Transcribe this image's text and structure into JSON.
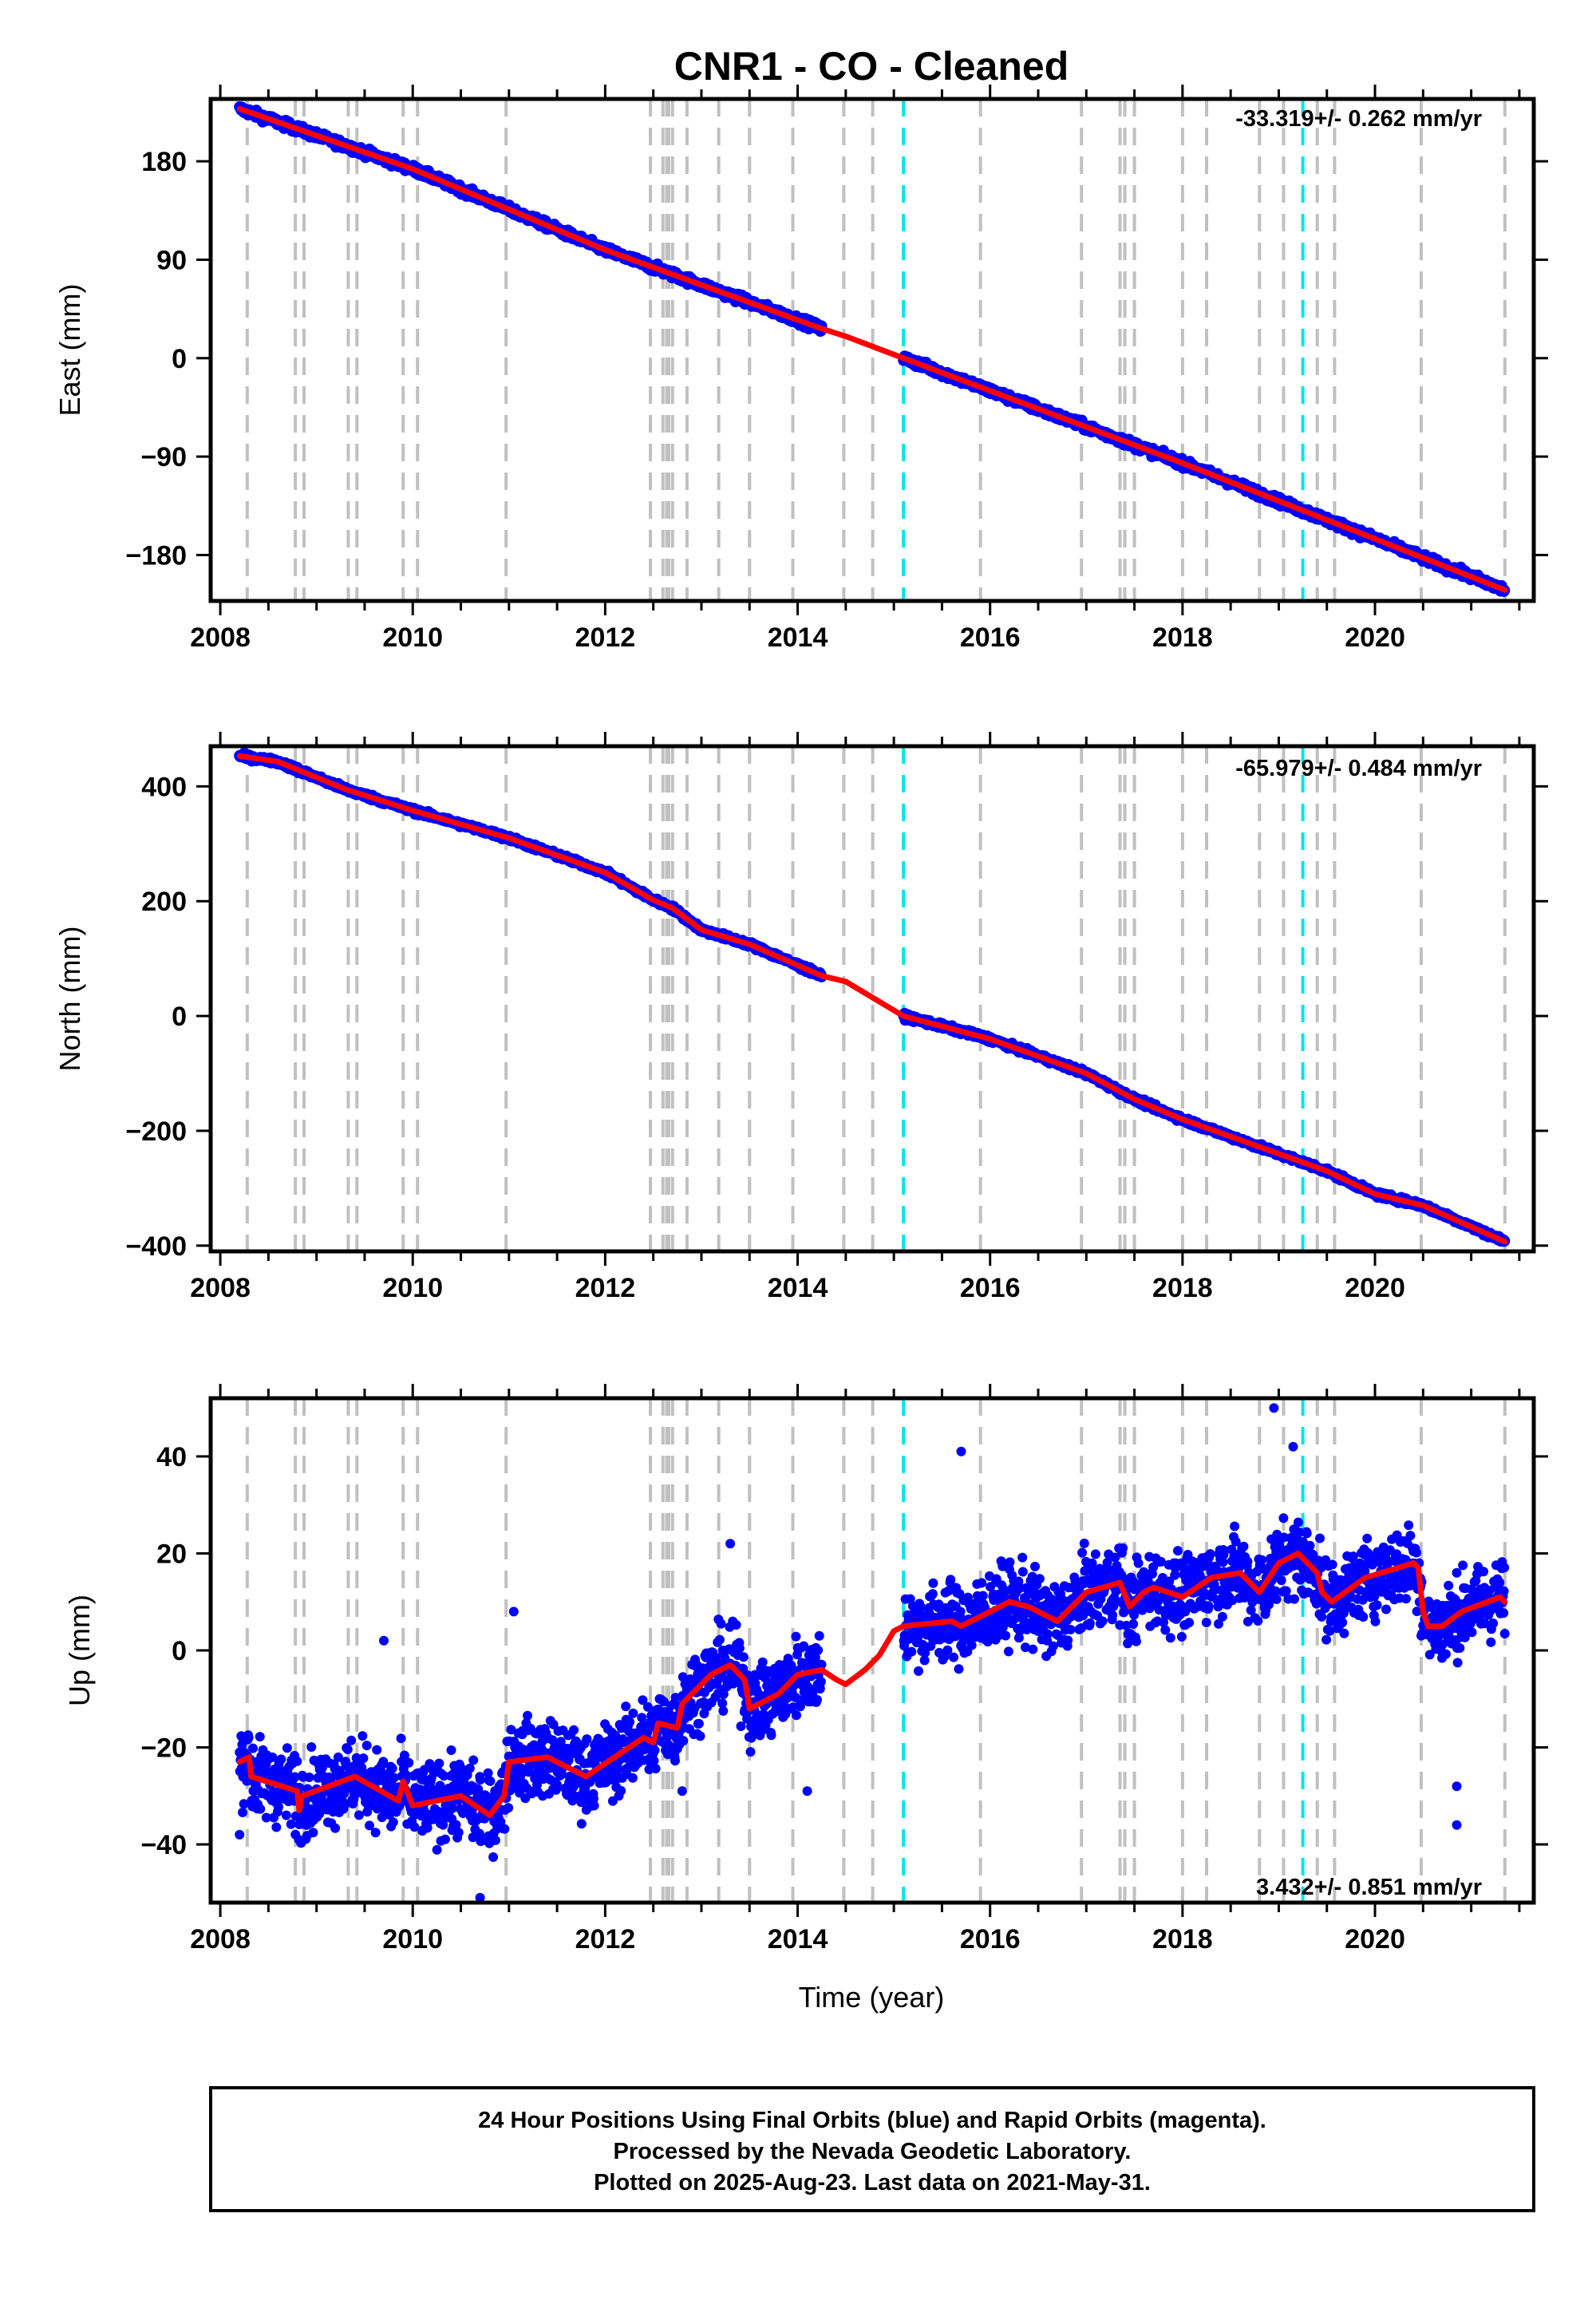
{
  "title": "CNR1  - CO - Cleaned",
  "xlabel": "Time (year)",
  "footer": [
    "24 Hour Positions Using Final Orbits (blue) and Rapid Orbits (magenta).",
    "Processed by the Nevada Geodetic Laboratory.",
    "Plotted on 2025-Aug-23. Last data on 2021-May-31."
  ],
  "colors": {
    "data": "#0000ff",
    "model": "#ff0000",
    "gray_lines": "#c0c0c0",
    "cyan_lines": "#00e5ee"
  },
  "chart_data": [
    {
      "type": "scatter",
      "title": "CNR1  - CO - Cleaned",
      "ylabel": "East (mm)",
      "xlim": [
        2007.9,
        2021.65
      ],
      "ylim": [
        -222,
        237
      ],
      "xticks": [
        2008,
        2010,
        2012,
        2014,
        2016,
        2018,
        2020
      ],
      "yticks": [
        -180,
        -90,
        0,
        90,
        180
      ],
      "ytick_labels": [
        "−180",
        "−90",
        "0",
        "90",
        "180"
      ],
      "rate_text": "-33.319+/- 0.262 mm/yr",
      "rate_position": "top-right",
      "data_gap": [
        2014.25,
        2015.1
      ],
      "model_points": [
        [
          2008.2,
          228
        ],
        [
          2010,
          173
        ],
        [
          2012,
          99
        ],
        [
          2014.25,
          27
        ],
        [
          2014.5,
          20
        ],
        [
          2015.1,
          0
        ],
        [
          2018,
          -96
        ],
        [
          2021.35,
          -212
        ]
      ],
      "noise_mm": 2.5,
      "series": [
        {
          "name": "",
          "values": "daily positions (blue dots)"
        },
        {
          "name": "",
          "values": "model fit (red line)"
        }
      ]
    },
    {
      "type": "scatter",
      "ylabel": "North (mm)",
      "xlim": [
        2007.9,
        2021.65
      ],
      "ylim": [
        -410,
        470
      ],
      "xticks": [
        2008,
        2010,
        2012,
        2014,
        2016,
        2018,
        2020
      ],
      "yticks": [
        -400,
        -200,
        0,
        200,
        400
      ],
      "ytick_labels": [
        "−400",
        "−200",
        "0",
        "200",
        "400"
      ],
      "rate_text": "-65.979+/- 0.484 mm/yr",
      "rate_position": "top-right",
      "data_gap": [
        2014.25,
        2015.1
      ],
      "model_points": [
        [
          2008.2,
          453
        ],
        [
          2008.6,
          443
        ],
        [
          2009.3,
          395
        ],
        [
          2010,
          358
        ],
        [
          2011,
          310
        ],
        [
          2012,
          250
        ],
        [
          2012.5,
          202
        ],
        [
          2012.7,
          188
        ],
        [
          2013,
          150
        ],
        [
          2013.5,
          125
        ],
        [
          2014.25,
          70
        ],
        [
          2014.5,
          60
        ],
        [
          2015.1,
          0
        ],
        [
          2016,
          -40
        ],
        [
          2017,
          -100
        ],
        [
          2017.5,
          -145
        ],
        [
          2018,
          -180
        ],
        [
          2019,
          -240
        ],
        [
          2019.5,
          -270
        ],
        [
          2020,
          -310
        ],
        [
          2020.5,
          -330
        ],
        [
          2021.35,
          -393
        ]
      ],
      "noise_mm": 3,
      "series": [
        {
          "name": "",
          "values": "daily positions (blue dots)"
        },
        {
          "name": "",
          "values": "model fit (red line)"
        }
      ]
    },
    {
      "type": "scatter",
      "ylabel": "Up (mm)",
      "xlim": [
        2007.9,
        2021.65
      ],
      "ylim": [
        -52,
        52
      ],
      "xticks": [
        2008,
        2010,
        2012,
        2014,
        2016,
        2018,
        2020
      ],
      "yticks": [
        -40,
        -20,
        0,
        20,
        40
      ],
      "ytick_labels": [
        "−40",
        "−20",
        "0",
        "20",
        "40"
      ],
      "rate_text": "3.432+/- 0.851 mm/yr",
      "rate_position": "bottom-right",
      "data_gap": [
        2014.25,
        2015.1
      ],
      "model_points": [
        [
          2008.2,
          -23
        ],
        [
          2008.3,
          -22
        ],
        [
          2008.32,
          -26
        ],
        [
          2008.8,
          -29
        ],
        [
          2008.82,
          -33
        ],
        [
          2008.85,
          -30
        ],
        [
          2009.4,
          -26
        ],
        [
          2009.85,
          -31
        ],
        [
          2009.9,
          -27
        ],
        [
          2010,
          -32
        ],
        [
          2010.5,
          -30
        ],
        [
          2010.8,
          -34
        ],
        [
          2010.95,
          -30
        ],
        [
          2011,
          -23
        ],
        [
          2011.4,
          -22
        ],
        [
          2011.8,
          -26
        ],
        [
          2012.4,
          -18
        ],
        [
          2012.5,
          -19
        ],
        [
          2012.55,
          -15
        ],
        [
          2012.75,
          -16
        ],
        [
          2012.8,
          -11
        ],
        [
          2013.1,
          -5
        ],
        [
          2013.3,
          -3
        ],
        [
          2013.45,
          -6
        ],
        [
          2013.5,
          -12
        ],
        [
          2013.8,
          -9
        ],
        [
          2014,
          -5
        ],
        [
          2014.25,
          -4
        ],
        [
          2014.4,
          -6
        ],
        [
          2014.5,
          -7
        ],
        [
          2014.7,
          -4
        ],
        [
          2014.85,
          -1
        ],
        [
          2015.0,
          4
        ],
        [
          2015.1,
          5
        ],
        [
          2015.6,
          6
        ],
        [
          2015.7,
          5
        ],
        [
          2016.2,
          10
        ],
        [
          2016.4,
          9
        ],
        [
          2016.7,
          6
        ],
        [
          2017.0,
          12
        ],
        [
          2017.35,
          14
        ],
        [
          2017.45,
          9
        ],
        [
          2017.6,
          12
        ],
        [
          2017.7,
          13
        ],
        [
          2018.0,
          11
        ],
        [
          2018.3,
          15
        ],
        [
          2018.6,
          16
        ],
        [
          2018.8,
          12
        ],
        [
          2019.0,
          18
        ],
        [
          2019.2,
          20
        ],
        [
          2019.4,
          16
        ],
        [
          2019.45,
          12
        ],
        [
          2019.55,
          10
        ],
        [
          2019.9,
          15
        ],
        [
          2020.4,
          18
        ],
        [
          2020.45,
          17
        ],
        [
          2020.5,
          8
        ],
        [
          2020.55,
          5
        ],
        [
          2020.7,
          5
        ],
        [
          2020.9,
          8
        ],
        [
          2021.3,
          11
        ],
        [
          2021.35,
          10
        ]
      ],
      "noise_mm": 5.5,
      "outliers": [
        [
          2018.95,
          50
        ],
        [
          2019.15,
          42
        ],
        [
          2015.7,
          41
        ],
        [
          2013.3,
          22
        ],
        [
          2011.05,
          8
        ],
        [
          2010.7,
          -51
        ],
        [
          2020.85,
          -36
        ],
        [
          2020.85,
          -28
        ],
        [
          2009.7,
          2
        ],
        [
          2008.2,
          -38
        ],
        [
          2012.8,
          -29
        ],
        [
          2014.1,
          -29
        ]
      ],
      "series": [
        {
          "name": "",
          "values": "daily positions (blue dots)"
        },
        {
          "name": "",
          "values": "model fit (red line)"
        }
      ]
    }
  ],
  "event_lines": {
    "gray": [
      2008.28,
      2008.78,
      2008.87,
      2009.33,
      2009.42,
      2009.9,
      2010.05,
      2010.97,
      2012.47,
      2012.6,
      2012.64,
      2012.66,
      2012.7,
      2012.85,
      2013.18,
      2013.5,
      2013.95,
      2014.48,
      2014.78,
      2015.9,
      2016.95,
      2017.35,
      2017.4,
      2017.5,
      2018.0,
      2018.25,
      2018.8,
      2019.05,
      2019.4,
      2019.58,
      2020.48,
      2021.35
    ],
    "cyan": [
      2015.1,
      2019.25
    ]
  }
}
